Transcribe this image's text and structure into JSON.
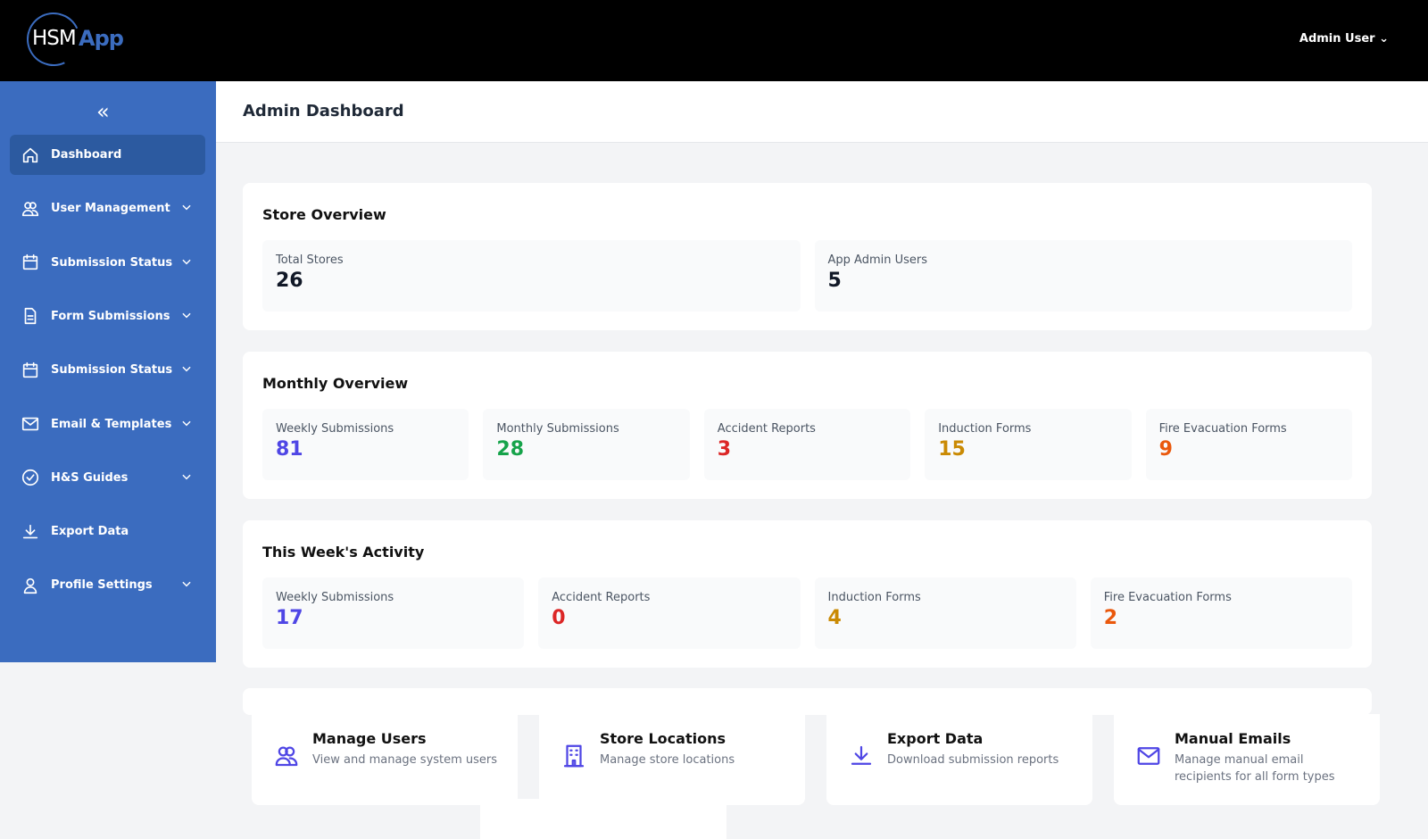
{
  "header": {
    "logo_left": "HSM",
    "logo_right": "App",
    "user_menu": "Admin User"
  },
  "sidebar": {
    "items": [
      {
        "label": "Dashboard",
        "icon": "home-icon",
        "active": true,
        "expandable": false
      },
      {
        "label": "User Management",
        "icon": "users-icon",
        "expandable": true
      },
      {
        "label": "Submission Status",
        "icon": "calendar-icon",
        "expandable": true
      },
      {
        "label": "Form Submissions",
        "icon": "document-icon",
        "expandable": true
      },
      {
        "label": "Submission Status",
        "icon": "calendar-icon",
        "expandable": true
      },
      {
        "label": "Email & Templates",
        "icon": "mail-icon",
        "expandable": true
      },
      {
        "label": "H&S Guides",
        "icon": "check-circle-icon",
        "expandable": true
      },
      {
        "label": "Export Data",
        "icon": "download-icon",
        "expandable": false
      },
      {
        "label": "Profile Settings",
        "icon": "user-icon",
        "expandable": true
      }
    ]
  },
  "page": {
    "title": "Admin Dashboard"
  },
  "store_overview": {
    "title": "Store Overview",
    "stats": [
      {
        "label": "Total Stores",
        "value": "26",
        "color": "#111827"
      },
      {
        "label": "App Admin Users",
        "value": "5",
        "color": "#111827"
      }
    ]
  },
  "monthly_overview": {
    "title": "Monthly Overview",
    "stats": [
      {
        "label": "Weekly Submissions",
        "value": "81",
        "color": "#4f46e5"
      },
      {
        "label": "Monthly Submissions",
        "value": "28",
        "color": "#16a34a"
      },
      {
        "label": "Accident Reports",
        "value": "3",
        "color": "#dc2626"
      },
      {
        "label": "Induction Forms",
        "value": "15",
        "color": "#ca8a04"
      },
      {
        "label": "Fire Evacuation Forms",
        "value": "9",
        "color": "#ea580c"
      }
    ]
  },
  "week_activity": {
    "title": "This Week's Activity",
    "stats": [
      {
        "label": "Weekly Submissions",
        "value": "17",
        "color": "#4f46e5"
      },
      {
        "label": "Accident Reports",
        "value": "0",
        "color": "#dc2626"
      },
      {
        "label": "Induction Forms",
        "value": "4",
        "color": "#ca8a04"
      },
      {
        "label": "Fire Evacuation Forms",
        "value": "2",
        "color": "#ea580c"
      }
    ]
  },
  "quick_actions": [
    {
      "title": "Manage Users",
      "desc": "View and manage system users",
      "icon": "users-icon"
    },
    {
      "title": "Store Locations",
      "desc": "Manage store locations",
      "icon": "building-icon"
    },
    {
      "title": "Export Data",
      "desc": "Download submission reports",
      "icon": "download-icon"
    },
    {
      "title": "Manual Emails",
      "desc": "Manage manual email recipients for all form types",
      "icon": "mail-icon"
    }
  ]
}
